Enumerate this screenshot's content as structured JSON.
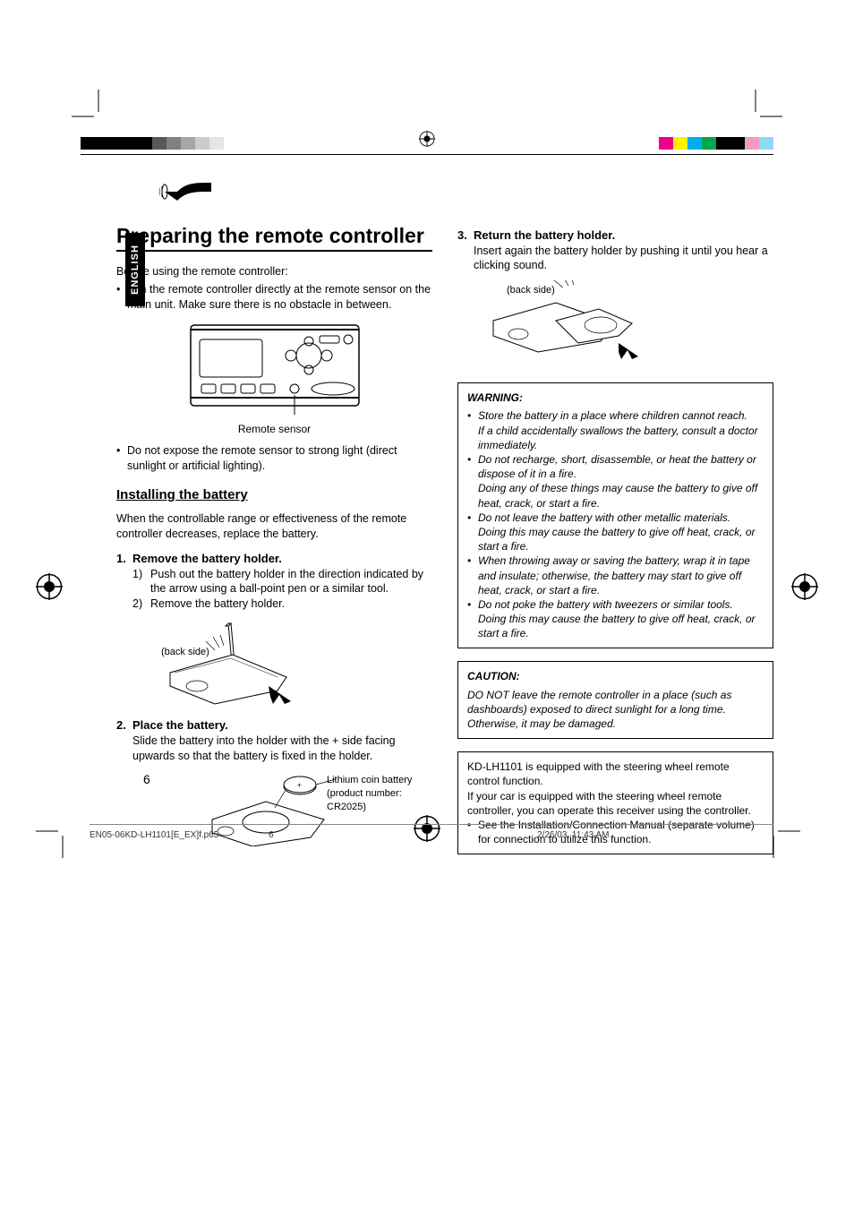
{
  "colorstrip": {
    "left_colors": [
      "#000000",
      "#000000",
      "#000000",
      "#000000",
      "#000000",
      "#595959",
      "#808080",
      "#a6a6a6",
      "#cccccc",
      "#e6e6e6"
    ],
    "right_colors": [
      "#ec008c",
      "#00aeef",
      "#00a651",
      "#000000",
      "#000000",
      "#f49ac1",
      "#8ed8f8"
    ]
  },
  "sideTab": "ENGLISH",
  "title": "Preparing the remote controller",
  "intro": "Before using the remote controller:",
  "introBullet": "Aim the remote controller directly at the remote sensor on the main unit. Make sure there is no obstacle in between.",
  "fig1Caption": "Remote sensor",
  "introBullet2": "Do not expose the remote sensor to strong light (direct sunlight or artificial lighting).",
  "h2": "Installing the battery",
  "h2intro": "When the controllable range or effectiveness of the remote controller decreases, replace the battery.",
  "step1": {
    "title": "Remove the battery holder.",
    "sub1": "Push out the battery holder in the direction indicated by the arrow using a ball-point pen or a similar tool.",
    "sub2": "Remove the battery holder.",
    "label": "(back side)"
  },
  "step2": {
    "title": "Place the battery.",
    "body": "Slide the battery into the holder with the + side facing upwards so that the battery is fixed in the holder.",
    "label": "Lithium coin battery (product number: CR2025)"
  },
  "step3": {
    "title": "Return the battery holder.",
    "body": "Insert again the battery holder by pushing it until you hear a clicking sound.",
    "label": "(back side)"
  },
  "warning": {
    "hd": "WARNING:",
    "items": [
      {
        "a": "Store the battery in a place where children cannot reach.",
        "b": "If a child accidentally swallows the battery, consult a doctor immediately."
      },
      {
        "a": "Do not recharge, short, disassemble, or heat the battery or dispose of it in a fire.",
        "b": "Doing any of these things may cause the battery to give off heat, crack, or start a fire."
      },
      {
        "a": "Do not leave the battery with other metallic materials.",
        "b": "Doing this may cause the battery to give off heat, crack, or start a fire."
      },
      {
        "a": "When throwing away or saving the battery, wrap it in tape and insulate; otherwise, the battery may start to give off heat, crack, or start a fire.",
        "b": ""
      },
      {
        "a": "Do not poke the battery with tweezers or similar tools.",
        "b": "Doing this may cause the battery to give off heat, crack, or start a fire."
      }
    ]
  },
  "caution": {
    "hd": "CAUTION:",
    "body": "DO NOT leave the remote controller in a place (such as dashboards) exposed to direct sunlight for a long time. Otherwise, it may be damaged."
  },
  "info": {
    "p1": "KD-LH1101 is equipped with the steering wheel remote control function.",
    "p2": "If your car is equipped with the steering wheel remote controller, you can operate this receiver using the controller.",
    "bullet": "See the Installation/Connection Manual (separate volume) for connection to utilize this function."
  },
  "pageNum": "6",
  "footer": {
    "file": "EN05-06KD-LH1101[E_EX]f.p65",
    "page": "6",
    "date": "2/26/03, 11:43 AM"
  }
}
